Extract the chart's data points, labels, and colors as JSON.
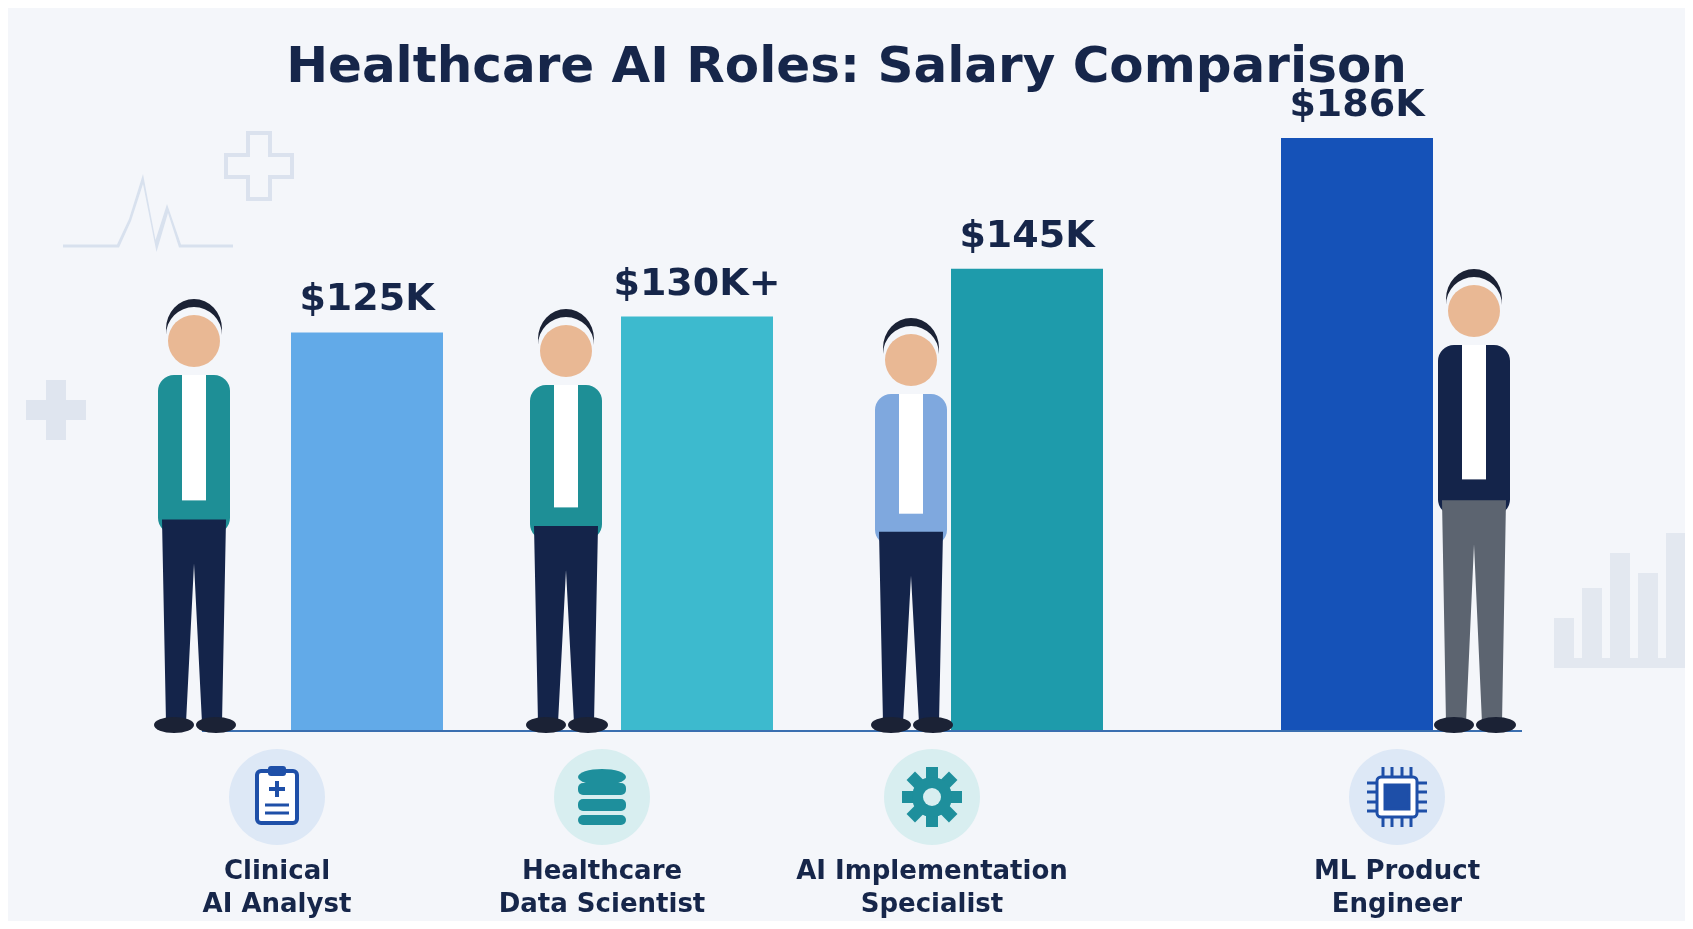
{
  "chart_data": {
    "type": "bar",
    "title": "Healthcare AI Roles: Salary Comparison",
    "categories": [
      "Clinical\nAI Analyst",
      "Healthcare\nData Scientist",
      "AI Implementation\nSpecialist",
      "ML Product\nEngineer"
    ],
    "values": [
      125,
      130,
      145,
      186
    ],
    "value_labels": [
      "$125K",
      "$130K+",
      "$145K",
      "$186K"
    ],
    "colors": [
      "#62aae8",
      "#3dbace",
      "#1e9bab",
      "#1552b8"
    ],
    "grid": false,
    "legend": false
  }
}
